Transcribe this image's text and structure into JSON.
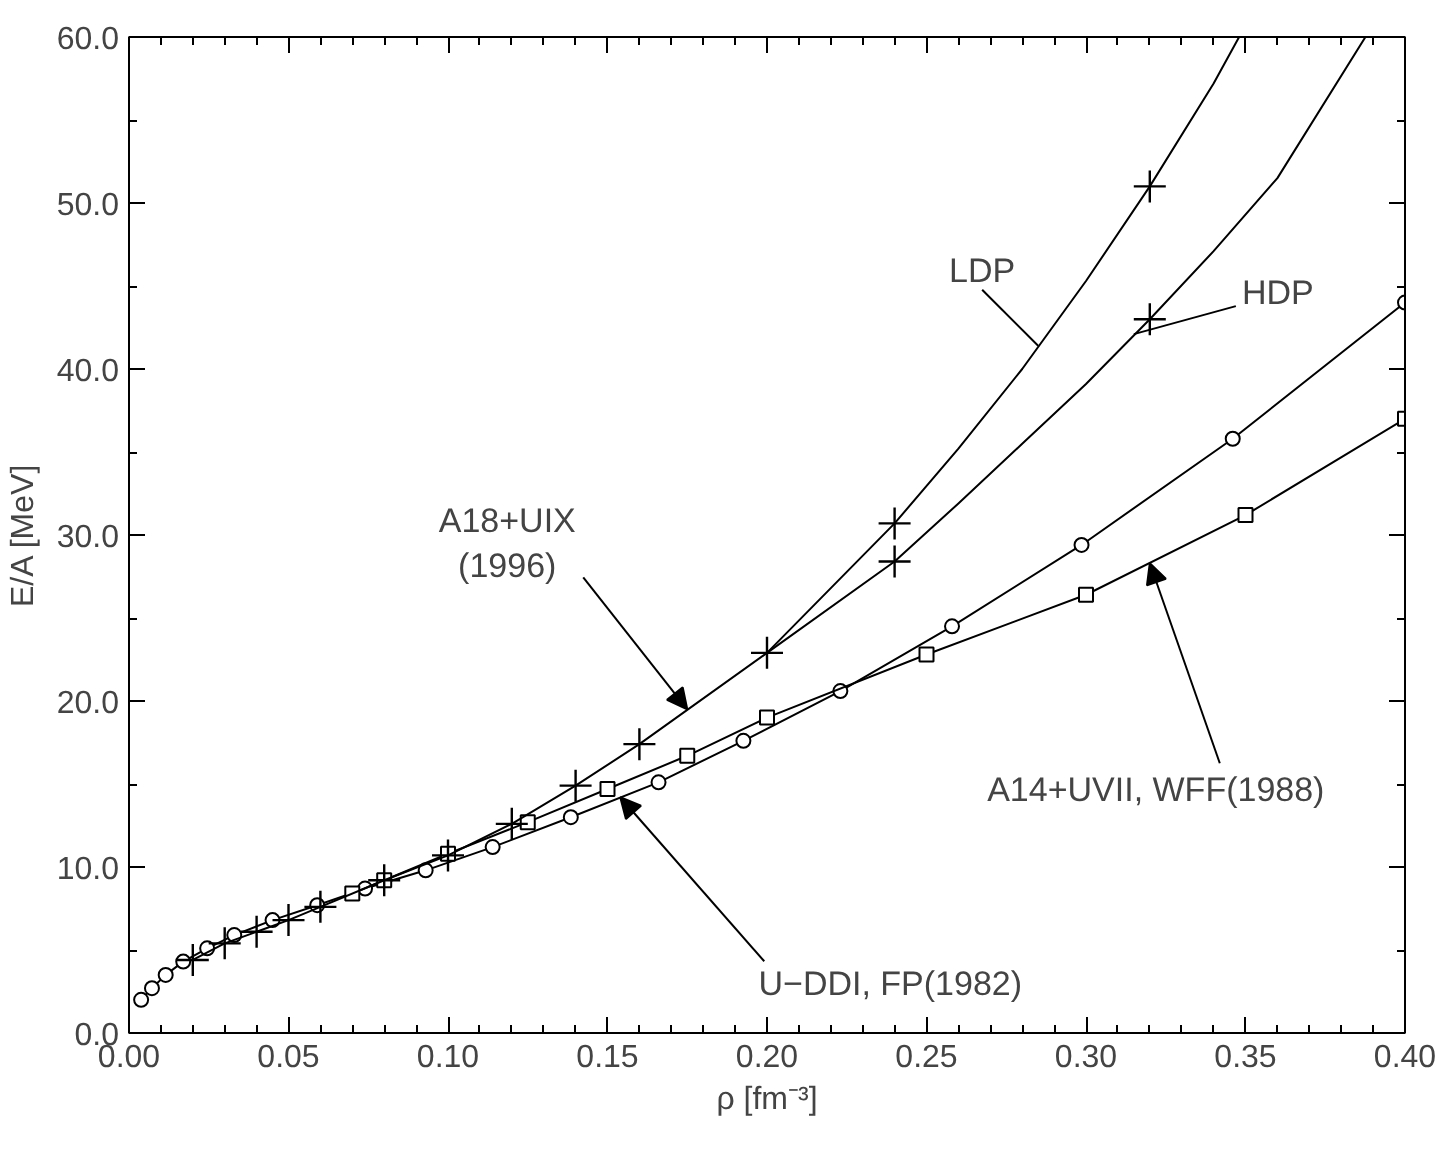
{
  "chart_data": {
    "type": "line",
    "xlabel": "ρ [fm⁻³]",
    "ylabel": "E/A [MeV]",
    "xlim": [
      0.0,
      0.4
    ],
    "ylim": [
      0.0,
      60.0
    ],
    "xticks": [
      {
        "value": 0.0,
        "label": "0.00"
      },
      {
        "value": 0.05,
        "label": "0.05"
      },
      {
        "value": 0.1,
        "label": "0.10"
      },
      {
        "value": 0.15,
        "label": "0.15"
      },
      {
        "value": 0.2,
        "label": "0.20"
      },
      {
        "value": 0.25,
        "label": "0.25"
      },
      {
        "value": 0.3,
        "label": "0.30"
      },
      {
        "value": 0.35,
        "label": "0.35"
      },
      {
        "value": 0.4,
        "label": "0.40"
      }
    ],
    "yticks": [
      {
        "value": 0,
        "label": "0.0"
      },
      {
        "value": 10,
        "label": "10.0"
      },
      {
        "value": 20,
        "label": "20.0"
      },
      {
        "value": 30,
        "label": "30.0"
      },
      {
        "value": 40,
        "label": "40.0"
      },
      {
        "value": 50,
        "label": "50.0"
      },
      {
        "value": 60,
        "label": "60.0"
      }
    ],
    "grid": false,
    "series": [
      {
        "color": "#000000",
        "marker": "circle",
        "x": [
          0.0038,
          0.0072,
          0.0115,
          0.017,
          0.0245,
          0.033,
          0.045,
          0.059,
          0.074,
          0.093,
          0.114,
          0.1385,
          0.166,
          0.1926,
          0.223,
          0.258,
          0.2986,
          0.346,
          0.4
        ],
        "values": [
          2.0,
          2.7,
          3.5,
          4.3,
          5.1,
          5.9,
          6.8,
          7.7,
          8.7,
          9.8,
          11.2,
          13.0,
          15.1,
          17.6,
          20.6,
          24.5,
          29.4,
          35.8,
          44.0
        ]
      },
      {
        "color": "#000000",
        "marker": "square",
        "x": [
          0.07,
          0.08,
          0.1,
          0.125,
          0.15,
          0.175,
          0.2,
          0.25,
          0.3,
          0.35,
          0.4
        ],
        "values": [
          8.4,
          9.2,
          10.8,
          12.7,
          14.7,
          16.7,
          19.0,
          22.8,
          26.4,
          31.2,
          37.0
        ]
      },
      {
        "color": "#000000",
        "marker": "cross",
        "x": [
          0.02,
          0.03,
          0.04,
          0.05,
          0.06,
          0.08,
          0.1,
          0.12,
          0.14,
          0.16,
          0.2
        ],
        "values": [
          4.4,
          5.4,
          6.1,
          6.8,
          7.6,
          9.2,
          10.7,
          12.6,
          14.9,
          17.4,
          22.9
        ]
      },
      {
        "color": "#000000",
        "marker": "none",
        "x": [
          0.2,
          0.24,
          0.26,
          0.28,
          0.3,
          0.32,
          0.34,
          0.348
        ],
        "values": [
          22.9,
          30.7,
          35.2,
          40.0,
          45.3,
          51.0,
          57.2,
          60.0
        ]
      },
      {
        "color": "#000000",
        "marker": "none",
        "x": [
          0.2,
          0.24,
          0.26,
          0.28,
          0.3,
          0.32,
          0.34,
          0.36,
          0.3876
        ],
        "values": [
          22.9,
          28.4,
          31.9,
          35.5,
          39.1,
          43.0,
          47.1,
          51.5,
          60.0
        ]
      },
      {
        "type": "scatter",
        "color": "#000000",
        "marker": "cross",
        "x": [
          0.24,
          0.24,
          0.32,
          0.32
        ],
        "values": [
          30.7,
          28.4,
          51.0,
          43.0
        ]
      }
    ],
    "annotations": [
      {
        "text": "A18+UIX\n(1996)",
        "x": 0.175,
        "y": 19.5
      },
      {
        "text": "LDP",
        "x": 0.285,
        "y": 41.4
      },
      {
        "text": "HDP",
        "x": 0.315,
        "y": 42.1
      },
      {
        "text": "A14+UVII, WFF(1988)",
        "x": 0.32,
        "y": 28.3
      },
      {
        "text": "U−DDI, FP(1982)",
        "x": 0.154,
        "y": 14.2
      }
    ]
  }
}
